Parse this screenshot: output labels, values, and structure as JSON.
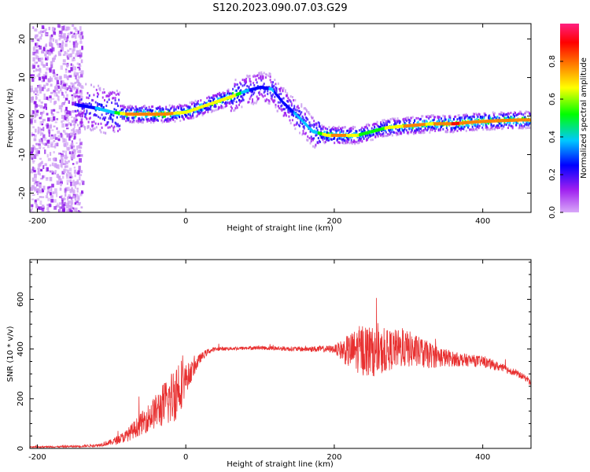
{
  "title": "S120.2023.090.07.03.G29",
  "chart_data": [
    {
      "type": "heatmap",
      "xlabel": "Height of straight line (km)",
      "ylabel": "Frequency (Hz)",
      "xlim": [
        -210,
        465
      ],
      "ylim": [
        -25,
        24
      ],
      "x_ticks": [
        -200,
        0,
        200,
        400
      ],
      "y_ticks": [
        -20,
        -10,
        0,
        10,
        20
      ],
      "colorbar": {
        "label": "Normalized spectral amplitude",
        "range": [
          0.0,
          1.0
        ],
        "ticks": [
          "0.0",
          "0.2",
          "0.4",
          "0.6",
          "0.8"
        ],
        "colormap": [
          "#a020f0",
          "#0000ff",
          "#00c8ff",
          "#00ff00",
          "#ffff00",
          "#ff8000",
          "#ff0000",
          "#ff2080"
        ]
      },
      "ridge": {
        "x": [
          -150,
          -120,
          -100,
          -80,
          -60,
          -30,
          0,
          30,
          60,
          80,
          100,
          115,
          130,
          150,
          170,
          190,
          210,
          230,
          250,
          270,
          300,
          330,
          360,
          390,
          420,
          450,
          465
        ],
        "y": [
          3,
          2,
          1,
          0.5,
          0.5,
          0.5,
          1,
          3,
          5,
          6.5,
          7.5,
          7,
          3.5,
          0,
          -4,
          -5,
          -5,
          -5,
          -4,
          -3,
          -2.5,
          -2,
          -2,
          -1.5,
          -1.2,
          -1,
          -1
        ],
        "amplitude": [
          0.3,
          0.45,
          0.5,
          0.85,
          0.9,
          0.9,
          0.7,
          0.8,
          0.8,
          0.45,
          0.4,
          0.45,
          0.4,
          0.45,
          0.45,
          0.8,
          0.85,
          0.7,
          0.6,
          0.7,
          0.85,
          0.8,
          0.95,
          0.9,
          0.9,
          0.9,
          0.9
        ]
      }
    },
    {
      "type": "line",
      "xlabel": "Height of straight line (km)",
      "ylabel": "SNR (10 * v/v)",
      "xlim": [
        -210,
        465
      ],
      "ylim": [
        0,
        760
      ],
      "x_ticks": [
        -200,
        0,
        200,
        400
      ],
      "y_ticks": [
        0,
        200,
        400,
        600
      ],
      "series": [
        {
          "color": "#e83030",
          "x": [
            -210,
            -150,
            -120,
            -100,
            -80,
            -60,
            -40,
            -20,
            -10,
            0,
            10,
            20,
            30,
            40,
            60,
            100,
            150,
            200,
            220,
            240,
            260,
            280,
            300,
            320,
            340,
            360,
            380,
            400,
            420,
            440,
            460,
            465
          ],
          "y": [
            5,
            8,
            12,
            25,
            50,
            100,
            150,
            200,
            250,
            280,
            320,
            365,
            390,
            400,
            402,
            405,
            400,
            400,
            390,
            400,
            380,
            400,
            400,
            380,
            370,
            360,
            355,
            350,
            330,
            310,
            280,
            260
          ],
          "noise": [
            3,
            4,
            6,
            12,
            25,
            45,
            70,
            110,
            130,
            60,
            35,
            18,
            12,
            8,
            7,
            8,
            10,
            15,
            70,
            110,
            90,
            80,
            75,
            60,
            45,
            30,
            25,
            22,
            18,
            15,
            12,
            12
          ]
        }
      ]
    }
  ]
}
